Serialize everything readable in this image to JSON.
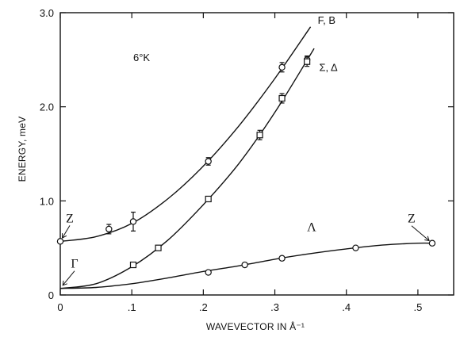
{
  "chart_data": {
    "type": "scatter",
    "title": "",
    "xlabel": "WAVEVECTOR IN Å⁻¹",
    "ylabel": "ENERGY, meV",
    "xlim": [
      0,
      0.55
    ],
    "ylim": [
      0,
      3.0
    ],
    "x_ticks": [
      {
        "v": 0,
        "label": "0"
      },
      {
        "v": 0.1,
        "label": ".1"
      },
      {
        "v": 0.2,
        "label": ".2"
      },
      {
        "v": 0.3,
        "label": ".3"
      },
      {
        "v": 0.4,
        "label": ".4"
      },
      {
        "v": 0.5,
        "label": ".5"
      }
    ],
    "y_ticks": [
      {
        "v": 0,
        "label": "0"
      },
      {
        "v": 1.0,
        "label": "1.0"
      },
      {
        "v": 2.0,
        "label": "2.0"
      },
      {
        "v": 3.0,
        "label": "3.0"
      }
    ],
    "temperature_label": "6°K",
    "series": [
      {
        "name": "F, B",
        "marker": "circle",
        "points": [
          {
            "x": 0.0,
            "y": 0.57
          },
          {
            "x": 0.068,
            "y": 0.7,
            "err": 0.05
          },
          {
            "x": 0.102,
            "y": 0.78,
            "err": 0.1
          },
          {
            "x": 0.207,
            "y": 1.42,
            "err": 0.04
          },
          {
            "x": 0.31,
            "y": 2.42,
            "err": 0.05
          },
          {
            "x": 0.345,
            "y": 2.5,
            "err": 0.04
          }
        ],
        "curve": [
          {
            "x": 0.0,
            "y": 0.57
          },
          {
            "x": 0.05,
            "y": 0.62
          },
          {
            "x": 0.1,
            "y": 0.76
          },
          {
            "x": 0.15,
            "y": 1.02
          },
          {
            "x": 0.2,
            "y": 1.37
          },
          {
            "x": 0.25,
            "y": 1.8
          },
          {
            "x": 0.3,
            "y": 2.3
          },
          {
            "x": 0.35,
            "y": 2.85
          }
        ]
      },
      {
        "name": "Σ, Δ",
        "marker": "square",
        "points": [
          {
            "x": 0.102,
            "y": 0.32
          },
          {
            "x": 0.137,
            "y": 0.5
          },
          {
            "x": 0.207,
            "y": 1.02
          },
          {
            "x": 0.279,
            "y": 1.7,
            "err": 0.05
          },
          {
            "x": 0.31,
            "y": 2.09,
            "err": 0.05
          },
          {
            "x": 0.345,
            "y": 2.48,
            "err": 0.05
          }
        ],
        "curve": [
          {
            "x": 0.0,
            "y": 0.07
          },
          {
            "x": 0.05,
            "y": 0.12
          },
          {
            "x": 0.1,
            "y": 0.3
          },
          {
            "x": 0.15,
            "y": 0.58
          },
          {
            "x": 0.2,
            "y": 0.96
          },
          {
            "x": 0.25,
            "y": 1.4
          },
          {
            "x": 0.3,
            "y": 1.94
          },
          {
            "x": 0.355,
            "y": 2.62
          }
        ]
      },
      {
        "name": "Λ",
        "marker": "circle",
        "points": [
          {
            "x": 0.207,
            "y": 0.24
          },
          {
            "x": 0.258,
            "y": 0.32
          },
          {
            "x": 0.31,
            "y": 0.39
          },
          {
            "x": 0.413,
            "y": 0.5
          },
          {
            "x": 0.52,
            "y": 0.55
          }
        ],
        "curve": [
          {
            "x": 0.0,
            "y": 0.07
          },
          {
            "x": 0.05,
            "y": 0.08
          },
          {
            "x": 0.1,
            "y": 0.12
          },
          {
            "x": 0.15,
            "y": 0.18
          },
          {
            "x": 0.2,
            "y": 0.25
          },
          {
            "x": 0.25,
            "y": 0.31
          },
          {
            "x": 0.3,
            "y": 0.38
          },
          {
            "x": 0.35,
            "y": 0.44
          },
          {
            "x": 0.4,
            "y": 0.49
          },
          {
            "x": 0.45,
            "y": 0.53
          },
          {
            "x": 0.5,
            "y": 0.55
          },
          {
            "x": 0.52,
            "y": 0.55
          }
        ]
      }
    ],
    "point_labels": [
      {
        "text": "Z",
        "target": {
          "x": 0.0,
          "y": 0.57
        },
        "big": true,
        "dx": 12,
        "dy": -24
      },
      {
        "text": "Γ",
        "target": {
          "x": 0.0,
          "y": 0.07
        },
        "big": true,
        "dx": 18,
        "dy": -26
      },
      {
        "text": "Z",
        "target": {
          "x": 0.52,
          "y": 0.55
        },
        "big": true,
        "dx": -26,
        "dy": -26
      }
    ],
    "curve_labels": [
      {
        "text": "F, B",
        "at": {
          "x": 0.36,
          "y": 2.88
        }
      },
      {
        "text": "Σ, Δ",
        "at": {
          "x": 0.362,
          "y": 2.38
        }
      },
      {
        "text": "Λ",
        "at": {
          "x": 0.345,
          "y": 0.68
        },
        "big": true
      }
    ]
  }
}
